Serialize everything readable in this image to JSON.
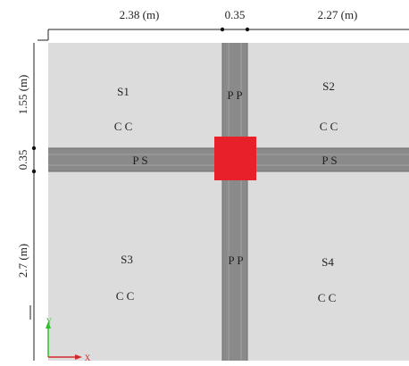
{
  "dimensions": {
    "top": [
      "2.38 (m)",
      "0.35",
      "2.27 (m)"
    ],
    "left": [
      "1.55 (m)",
      "0.35",
      "2.7 (m)"
    ]
  },
  "slabs": [
    {
      "name": "S1",
      "code": "C C"
    },
    {
      "name": "S2",
      "code": "C C"
    },
    {
      "name": "S3",
      "code": "C C"
    },
    {
      "name": "S4",
      "code": "C C"
    }
  ],
  "beams": {
    "vertical_top": "P P",
    "vertical_bottom": "P P",
    "horizontal_left": "P S",
    "horizontal_right": "P S"
  },
  "axes": {
    "y": "Y",
    "x": "X"
  },
  "colors": {
    "slab": "#dcdcdc",
    "beam": "#8a8a8a",
    "beam_edge": "#6e6e6e",
    "column": "#e8202a",
    "axis_y": "#2fbf2f",
    "axis_x": "#d62a2a"
  }
}
